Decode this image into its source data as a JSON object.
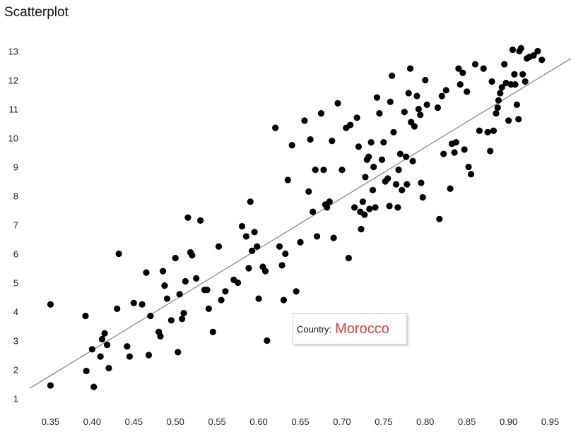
{
  "colors": {
    "point": "#000000",
    "trend": "#808080",
    "highlight": "#e03c3c"
  },
  "tooltip": {
    "label": "Country:",
    "value": "Morocco"
  },
  "chart_data": {
    "type": "scatter",
    "title": "Scatterplot",
    "xlabel": "",
    "ylabel": "",
    "xlim": [
      0.325,
      0.975
    ],
    "ylim": [
      0.5,
      13.5
    ],
    "x_ticks": [
      "0.35",
      "0.40",
      "0.45",
      "0.50",
      "0.55",
      "0.60",
      "0.65",
      "0.70",
      "0.75",
      "0.80",
      "0.85",
      "0.90",
      "0.95"
    ],
    "y_ticks": [
      "1",
      "2",
      "3",
      "4",
      "5",
      "6",
      "7",
      "8",
      "9",
      "10",
      "11",
      "12",
      "13"
    ],
    "grid": false,
    "trendline": {
      "x": [
        0.325,
        0.975
      ],
      "y": [
        1.35,
        12.75
      ]
    },
    "points": [
      [
        0.35,
        4.25
      ],
      [
        0.35,
        1.45
      ],
      [
        0.392,
        3.85
      ],
      [
        0.393,
        1.95
      ],
      [
        0.4,
        2.7
      ],
      [
        0.402,
        1.4
      ],
      [
        0.41,
        2.45
      ],
      [
        0.412,
        3.05
      ],
      [
        0.415,
        3.25
      ],
      [
        0.418,
        2.85
      ],
      [
        0.42,
        2.05
      ],
      [
        0.43,
        4.1
      ],
      [
        0.432,
        6.0
      ],
      [
        0.442,
        2.8
      ],
      [
        0.445,
        2.45
      ],
      [
        0.45,
        4.3
      ],
      [
        0.46,
        4.25
      ],
      [
        0.465,
        5.35
      ],
      [
        0.468,
        2.5
      ],
      [
        0.47,
        3.85
      ],
      [
        0.48,
        3.3
      ],
      [
        0.482,
        3.15
      ],
      [
        0.485,
        5.4
      ],
      [
        0.487,
        4.9
      ],
      [
        0.49,
        4.45
      ],
      [
        0.495,
        3.7
      ],
      [
        0.5,
        5.85
      ],
      [
        0.503,
        2.6
      ],
      [
        0.505,
        4.6
      ],
      [
        0.508,
        3.75
      ],
      [
        0.51,
        3.95
      ],
      [
        0.512,
        5.05
      ],
      [
        0.515,
        7.25
      ],
      [
        0.518,
        6.05
      ],
      [
        0.52,
        5.95
      ],
      [
        0.525,
        5.15
      ],
      [
        0.53,
        7.15
      ],
      [
        0.535,
        4.75
      ],
      [
        0.538,
        4.75
      ],
      [
        0.54,
        4.1
      ],
      [
        0.545,
        3.3
      ],
      [
        0.552,
        6.25
      ],
      [
        0.555,
        4.4
      ],
      [
        0.56,
        4.7
      ],
      [
        0.57,
        5.1
      ],
      [
        0.575,
        5.0
      ],
      [
        0.58,
        6.95
      ],
      [
        0.585,
        6.6
      ],
      [
        0.588,
        5.5
      ],
      [
        0.59,
        7.8
      ],
      [
        0.592,
        6.1
      ],
      [
        0.595,
        6.75
      ],
      [
        0.598,
        6.25
      ],
      [
        0.6,
        4.45
      ],
      [
        0.605,
        5.55
      ],
      [
        0.608,
        5.4
      ],
      [
        0.61,
        3.0
      ],
      [
        0.62,
        10.35
      ],
      [
        0.625,
        6.25
      ],
      [
        0.628,
        5.6
      ],
      [
        0.63,
        4.4
      ],
      [
        0.632,
        6.0
      ],
      [
        0.635,
        8.55
      ],
      [
        0.64,
        9.75
      ],
      [
        0.645,
        4.7
      ],
      [
        0.65,
        6.4
      ],
      [
        0.655,
        10.6
      ],
      [
        0.66,
        8.15
      ],
      [
        0.662,
        9.95
      ],
      [
        0.665,
        7.45
      ],
      [
        0.668,
        8.9
      ],
      [
        0.67,
        6.6
      ],
      [
        0.675,
        10.85
      ],
      [
        0.678,
        8.9
      ],
      [
        0.68,
        7.7
      ],
      [
        0.682,
        7.6
      ],
      [
        0.685,
        7.8
      ],
      [
        0.688,
        9.9
      ],
      [
        0.69,
        6.55
      ],
      [
        0.695,
        11.2
      ],
      [
        0.7,
        8.9
      ],
      [
        0.705,
        10.35
      ],
      [
        0.708,
        5.85
      ],
      [
        0.71,
        10.45
      ],
      [
        0.715,
        7.6
      ],
      [
        0.718,
        10.7
      ],
      [
        0.72,
        9.7
      ],
      [
        0.722,
        7.45
      ],
      [
        0.723,
        6.85
      ],
      [
        0.725,
        7.8
      ],
      [
        0.727,
        7.35
      ],
      [
        0.728,
        8.65
      ],
      [
        0.73,
        9.25
      ],
      [
        0.732,
        9.35
      ],
      [
        0.733,
        7.55
      ],
      [
        0.735,
        9.85
      ],
      [
        0.737,
        8.2
      ],
      [
        0.738,
        9.0
      ],
      [
        0.74,
        7.6
      ],
      [
        0.742,
        11.4
      ],
      [
        0.745,
        10.85
      ],
      [
        0.748,
        9.25
      ],
      [
        0.75,
        9.85
      ],
      [
        0.752,
        8.5
      ],
      [
        0.755,
        8.6
      ],
      [
        0.757,
        7.65
      ],
      [
        0.758,
        11.25
      ],
      [
        0.76,
        12.15
      ],
      [
        0.762,
        10.2
      ],
      [
        0.765,
        8.4
      ],
      [
        0.767,
        7.6
      ],
      [
        0.768,
        8.9
      ],
      [
        0.77,
        9.45
      ],
      [
        0.772,
        8.2
      ],
      [
        0.775,
        10.9
      ],
      [
        0.777,
        9.35
      ],
      [
        0.778,
        8.4
      ],
      [
        0.78,
        11.55
      ],
      [
        0.782,
        12.4
      ],
      [
        0.783,
        10.55
      ],
      [
        0.785,
        9.2
      ],
      [
        0.787,
        10.4
      ],
      [
        0.79,
        11.45
      ],
      [
        0.792,
        11.0
      ],
      [
        0.794,
        10.8
      ],
      [
        0.795,
        8.45
      ],
      [
        0.797,
        7.95
      ],
      [
        0.8,
        12.0
      ],
      [
        0.802,
        11.15
      ],
      [
        0.815,
        11.05
      ],
      [
        0.817,
        7.2
      ],
      [
        0.82,
        11.45
      ],
      [
        0.822,
        9.45
      ],
      [
        0.825,
        11.65
      ],
      [
        0.83,
        8.25
      ],
      [
        0.832,
        9.8
      ],
      [
        0.835,
        9.5
      ],
      [
        0.837,
        9.85
      ],
      [
        0.84,
        12.4
      ],
      [
        0.842,
        11.85
      ],
      [
        0.845,
        12.25
      ],
      [
        0.847,
        9.6
      ],
      [
        0.85,
        11.6
      ],
      [
        0.852,
        9.0
      ],
      [
        0.855,
        8.75
      ],
      [
        0.86,
        12.55
      ],
      [
        0.865,
        10.25
      ],
      [
        0.87,
        12.4
      ],
      [
        0.875,
        10.2
      ],
      [
        0.878,
        9.55
      ],
      [
        0.88,
        11.95
      ],
      [
        0.882,
        10.25
      ],
      [
        0.885,
        10.85
      ],
      [
        0.887,
        11.05
      ],
      [
        0.888,
        11.3
      ],
      [
        0.89,
        11.55
      ],
      [
        0.892,
        11.75
      ],
      [
        0.895,
        12.55
      ],
      [
        0.897,
        11.9
      ],
      [
        0.9,
        10.6
      ],
      [
        0.903,
        11.85
      ],
      [
        0.905,
        13.05
      ],
      [
        0.907,
        12.2
      ],
      [
        0.908,
        11.85
      ],
      [
        0.91,
        11.15
      ],
      [
        0.912,
        10.65
      ],
      [
        0.913,
        13.0
      ],
      [
        0.915,
        13.1
      ],
      [
        0.917,
        12.2
      ],
      [
        0.92,
        11.95
      ],
      [
        0.922,
        12.75
      ],
      [
        0.925,
        12.8
      ],
      [
        0.93,
        12.85
      ],
      [
        0.935,
        13.0
      ],
      [
        0.94,
        12.7
      ]
    ]
  }
}
